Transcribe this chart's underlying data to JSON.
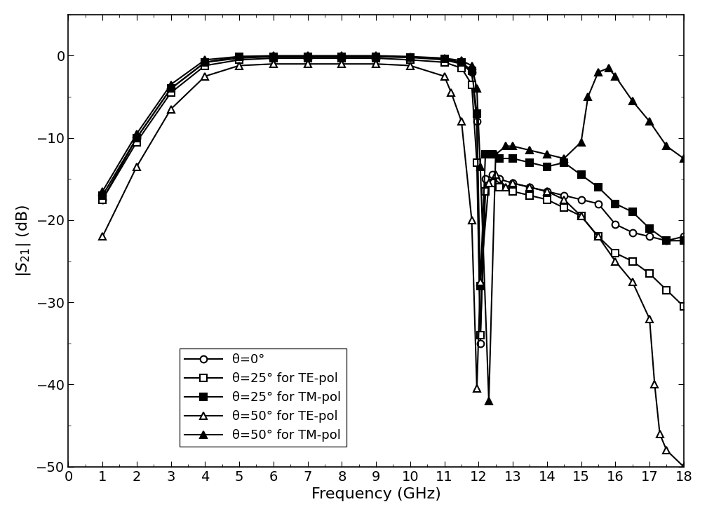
{
  "title": "",
  "xlabel": "Frequency (GHz)",
  "ylabel": "$|S_{21}|$ (dB)",
  "xlim": [
    0,
    18
  ],
  "ylim": [
    -50,
    5
  ],
  "yticks": [
    0,
    -10,
    -20,
    -30,
    -40,
    -50
  ],
  "xticks": [
    0,
    1,
    2,
    3,
    4,
    5,
    6,
    7,
    8,
    9,
    10,
    11,
    12,
    13,
    14,
    15,
    16,
    17,
    18
  ],
  "series": [
    {
      "label": "θ=0°",
      "marker": "o",
      "markerfacecolor": "white",
      "markeredgecolor": "black",
      "linecolor": "black",
      "linewidth": 1.5,
      "markersize": 7,
      "markevery": 1,
      "x": [
        1,
        2,
        3,
        4,
        5,
        6,
        7,
        8,
        9,
        10,
        11,
        11.5,
        11.8,
        11.95,
        12.05,
        12.2,
        12.4,
        12.6,
        13.0,
        13.5,
        14.0,
        14.5,
        15.0,
        15.5,
        16.0,
        16.5,
        17.0,
        17.5,
        18.0
      ],
      "y": [
        -17.5,
        -10.0,
        -4.0,
        -0.8,
        -0.3,
        -0.1,
        -0.1,
        -0.1,
        -0.1,
        -0.2,
        -0.5,
        -1.0,
        -2.0,
        -8.0,
        -35.0,
        -15.0,
        -14.5,
        -15.0,
        -15.5,
        -16.0,
        -16.5,
        -17.0,
        -17.5,
        -18.0,
        -20.5,
        -21.5,
        -22.0,
        -22.5,
        -22.0
      ]
    },
    {
      "label": "θ=25° for TE-pol",
      "marker": "s",
      "markerfacecolor": "white",
      "markeredgecolor": "black",
      "linecolor": "black",
      "linewidth": 1.5,
      "markersize": 7,
      "markevery": 1,
      "x": [
        1,
        2,
        3,
        4,
        5,
        6,
        7,
        8,
        9,
        10,
        11,
        11.5,
        11.8,
        11.95,
        12.05,
        12.2,
        12.4,
        12.6,
        13.0,
        13.5,
        14.0,
        14.5,
        15.0,
        15.5,
        16.0,
        16.5,
        17.0,
        17.5,
        18.0
      ],
      "y": [
        -17.5,
        -10.5,
        -4.5,
        -1.2,
        -0.5,
        -0.3,
        -0.3,
        -0.3,
        -0.3,
        -0.5,
        -0.8,
        -1.5,
        -3.5,
        -13.0,
        -34.0,
        -16.5,
        -15.5,
        -16.0,
        -16.5,
        -17.0,
        -17.5,
        -18.5,
        -19.5,
        -22.0,
        -24.0,
        -25.0,
        -26.5,
        -28.5,
        -30.5
      ]
    },
    {
      "label": "θ=25° for TM-pol",
      "marker": "s",
      "markerfacecolor": "black",
      "markeredgecolor": "black",
      "linecolor": "black",
      "linewidth": 1.5,
      "markersize": 7,
      "markevery": 1,
      "x": [
        1,
        2,
        3,
        4,
        5,
        6,
        7,
        8,
        9,
        10,
        11,
        11.5,
        11.8,
        11.95,
        12.05,
        12.2,
        12.4,
        12.6,
        13.0,
        13.5,
        14.0,
        14.5,
        15.0,
        15.5,
        16.0,
        16.5,
        17.0,
        17.5,
        18.0
      ],
      "y": [
        -17.0,
        -10.0,
        -4.0,
        -0.8,
        -0.1,
        -0.1,
        -0.1,
        -0.1,
        -0.1,
        -0.2,
        -0.4,
        -0.8,
        -1.8,
        -7.0,
        -28.0,
        -12.0,
        -12.0,
        -12.5,
        -12.5,
        -13.0,
        -13.5,
        -13.0,
        -14.5,
        -16.0,
        -18.0,
        -19.0,
        -21.0,
        -22.5,
        -22.5
      ]
    },
    {
      "label": "θ=50° for TE-pol",
      "marker": "^",
      "markerfacecolor": "white",
      "markeredgecolor": "black",
      "linecolor": "black",
      "linewidth": 1.5,
      "markersize": 7,
      "markevery": 1,
      "x": [
        1,
        2,
        3,
        4,
        5,
        6,
        7,
        8,
        9,
        10,
        11,
        11.2,
        11.5,
        11.8,
        11.95,
        12.05,
        12.3,
        12.5,
        12.8,
        13.0,
        13.5,
        14.0,
        14.5,
        15.0,
        15.5,
        16.0,
        16.5,
        17.0,
        17.15,
        17.3,
        17.5,
        18.0
      ],
      "y": [
        -22.0,
        -13.5,
        -6.5,
        -2.5,
        -1.2,
        -1.0,
        -1.0,
        -1.0,
        -1.0,
        -1.2,
        -2.5,
        -4.5,
        -8.0,
        -20.0,
        -40.5,
        -27.5,
        -15.5,
        -14.5,
        -16.0,
        -15.5,
        -16.0,
        -16.5,
        -17.5,
        -19.5,
        -22.0,
        -25.0,
        -27.5,
        -32.0,
        -40.0,
        -46.0,
        -48.0,
        -50.0
      ]
    },
    {
      "label": "θ=50° for TM-pol",
      "marker": "^",
      "markerfacecolor": "black",
      "markeredgecolor": "black",
      "linecolor": "black",
      "linewidth": 1.5,
      "markersize": 7,
      "markevery": 1,
      "x": [
        1,
        2,
        3,
        4,
        5,
        6,
        7,
        8,
        9,
        10,
        11,
        11.5,
        11.8,
        11.95,
        12.05,
        12.3,
        12.5,
        12.8,
        13.0,
        13.5,
        14.0,
        14.5,
        15.0,
        15.2,
        15.5,
        15.8,
        16.0,
        16.5,
        17.0,
        17.5,
        18.0
      ],
      "y": [
        -16.5,
        -9.5,
        -3.5,
        -0.5,
        -0.1,
        0.0,
        0.0,
        0.0,
        0.0,
        -0.1,
        -0.3,
        -0.6,
        -1.2,
        -4.0,
        -13.5,
        -42.0,
        -12.0,
        -11.0,
        -11.0,
        -11.5,
        -12.0,
        -12.5,
        -10.5,
        -5.0,
        -2.0,
        -1.5,
        -2.5,
        -5.5,
        -8.0,
        -11.0,
        -12.5
      ]
    }
  ],
  "legend_loc": "lower left",
  "background_color": "white"
}
